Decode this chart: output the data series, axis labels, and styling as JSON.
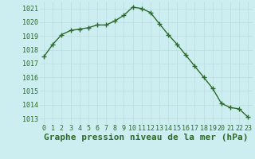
{
  "x": [
    0,
    1,
    2,
    3,
    4,
    5,
    6,
    7,
    8,
    9,
    10,
    11,
    12,
    13,
    14,
    15,
    16,
    17,
    18,
    19,
    20,
    21,
    22,
    23
  ],
  "y": [
    1017.5,
    1018.4,
    1019.1,
    1019.4,
    1019.5,
    1019.6,
    1019.8,
    1019.8,
    1020.1,
    1020.5,
    1021.1,
    1021.0,
    1020.7,
    1019.9,
    1019.1,
    1018.4,
    1017.6,
    1016.8,
    1016.0,
    1015.2,
    1014.1,
    1013.8,
    1013.7,
    1013.1
  ],
  "line_color": "#2d6a2d",
  "marker": "+",
  "marker_size": 4,
  "marker_linewidth": 1.0,
  "bg_color": "#cceef0",
  "grid_color": "#bbdddd",
  "xlabel": "Graphe pression niveau de la mer (hPa)",
  "xlabel_fontsize": 8,
  "xlabel_color": "#2d6a2d",
  "ylabel_ticks": [
    1013,
    1014,
    1015,
    1016,
    1017,
    1018,
    1019,
    1020,
    1021
  ],
  "xlim": [
    -0.5,
    23.5
  ],
  "ylim": [
    1012.6,
    1021.5
  ],
  "tick_fontsize": 6,
  "tick_color": "#2d6a2d",
  "line_width": 1.0
}
